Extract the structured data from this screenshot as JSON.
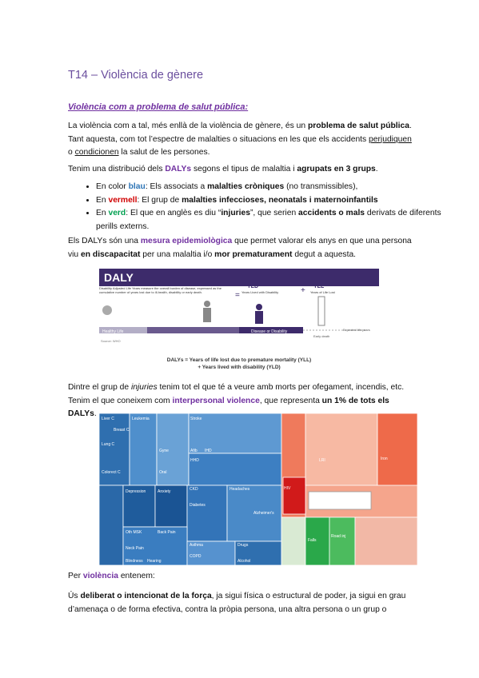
{
  "title": "T14 – Violència de gènere",
  "heading": "Violència com a problema de salut pública:",
  "paragraphs": [
    [
      "La violència com a tal, més enllà de la violència de gènere, és un ",
      "problema de salut pública",
      ". Tant aquesta, com tot l’espectre de malalties o situacions en les que els accidents ",
      "perjudiquen",
      " o ",
      "condicionen",
      " la salut de les persones."
    ],
    [
      "Tenim una distribució dels ",
      "DALYs",
      " segons el tipus de malaltia i ",
      "agrupats en 3 grups",
      "."
    ],
    [
      "Els DALYs són una ",
      "mesura epidemiològica",
      " que permet valorar els anys en que una persona viu ",
      "en discapacitat",
      " per una malaltia i/o ",
      "mor prematurament",
      " degut a aquesta."
    ],
    [
      "Dintre el grup de ",
      "injuries",
      " tenim tot el que té a veure amb morts per ofegament, incendis, etc. Tenim el que coneixem com ",
      "interpersonal violence",
      ", que representa ",
      "un 1% de tots els DALYs",
      "."
    ],
    [
      "Per ",
      "violència",
      " entenem:"
    ],
    [
      "Ús ",
      "deliberat o intencionat de la força",
      ", ja sigui física o estructural de poder, ja sigui en grau d’amenaça o de forma efectiva, contra la pròpia persona, una altra persona o un grup o"
    ]
  ],
  "bullets": [
    [
      "En color ",
      "blau",
      ": Els associats a ",
      "malalties cròniques",
      " (no transmissibles),"
    ],
    [
      "En ",
      "vermell",
      ": El grup de ",
      "malalties infeccioses, neonatals i maternoinfantils"
    ],
    [
      "En ",
      "verd",
      ": El que en anglès es diu “",
      "injuries",
      "”, que serien ",
      "accidents o mals",
      " derivats de diferents perills externs."
    ]
  ],
  "daly_figure": {
    "title": "DALY",
    "description": "Disability Adjusted Life Years measure the overall burden of disease, expressed as the cumulative number of years lost due to ill-health, disability or early death.",
    "equals": "=",
    "plus": "+",
    "yld": "YLD",
    "yld_text": "Years Lived with Disability",
    "yll": "YLL",
    "yll_text": "Years of Life Lost",
    "healthy": "Healthy Life",
    "disease": "Disease or Disability",
    "early_death": "Early death",
    "expected": "Expected life years",
    "source": "Source: WHO",
    "caption": [
      "DALYs = Years of life lost due to premature mortality (YLL)",
      "+ Years lived with disability (YLD)"
    ]
  },
  "treemap": {
    "labels": [
      "Liver C",
      "Leukemia",
      "Breast C",
      "Lung C",
      "Colorect C",
      "Stroke",
      "IHD",
      "Afib",
      "HHD",
      "Gyne",
      "Oral",
      "Depression",
      "Anxiety",
      "CKD",
      "Diabetes",
      "Headaches",
      "Alzheimer's",
      "Oth MSK",
      "Back Pain",
      "Neck Pain",
      "Blindness",
      "Hearing",
      "Asthma",
      "COPD",
      "Drugs",
      "Alcohol",
      "HIV",
      "LRI",
      "Iron",
      "Falls",
      "Road inj"
    ]
  }
}
